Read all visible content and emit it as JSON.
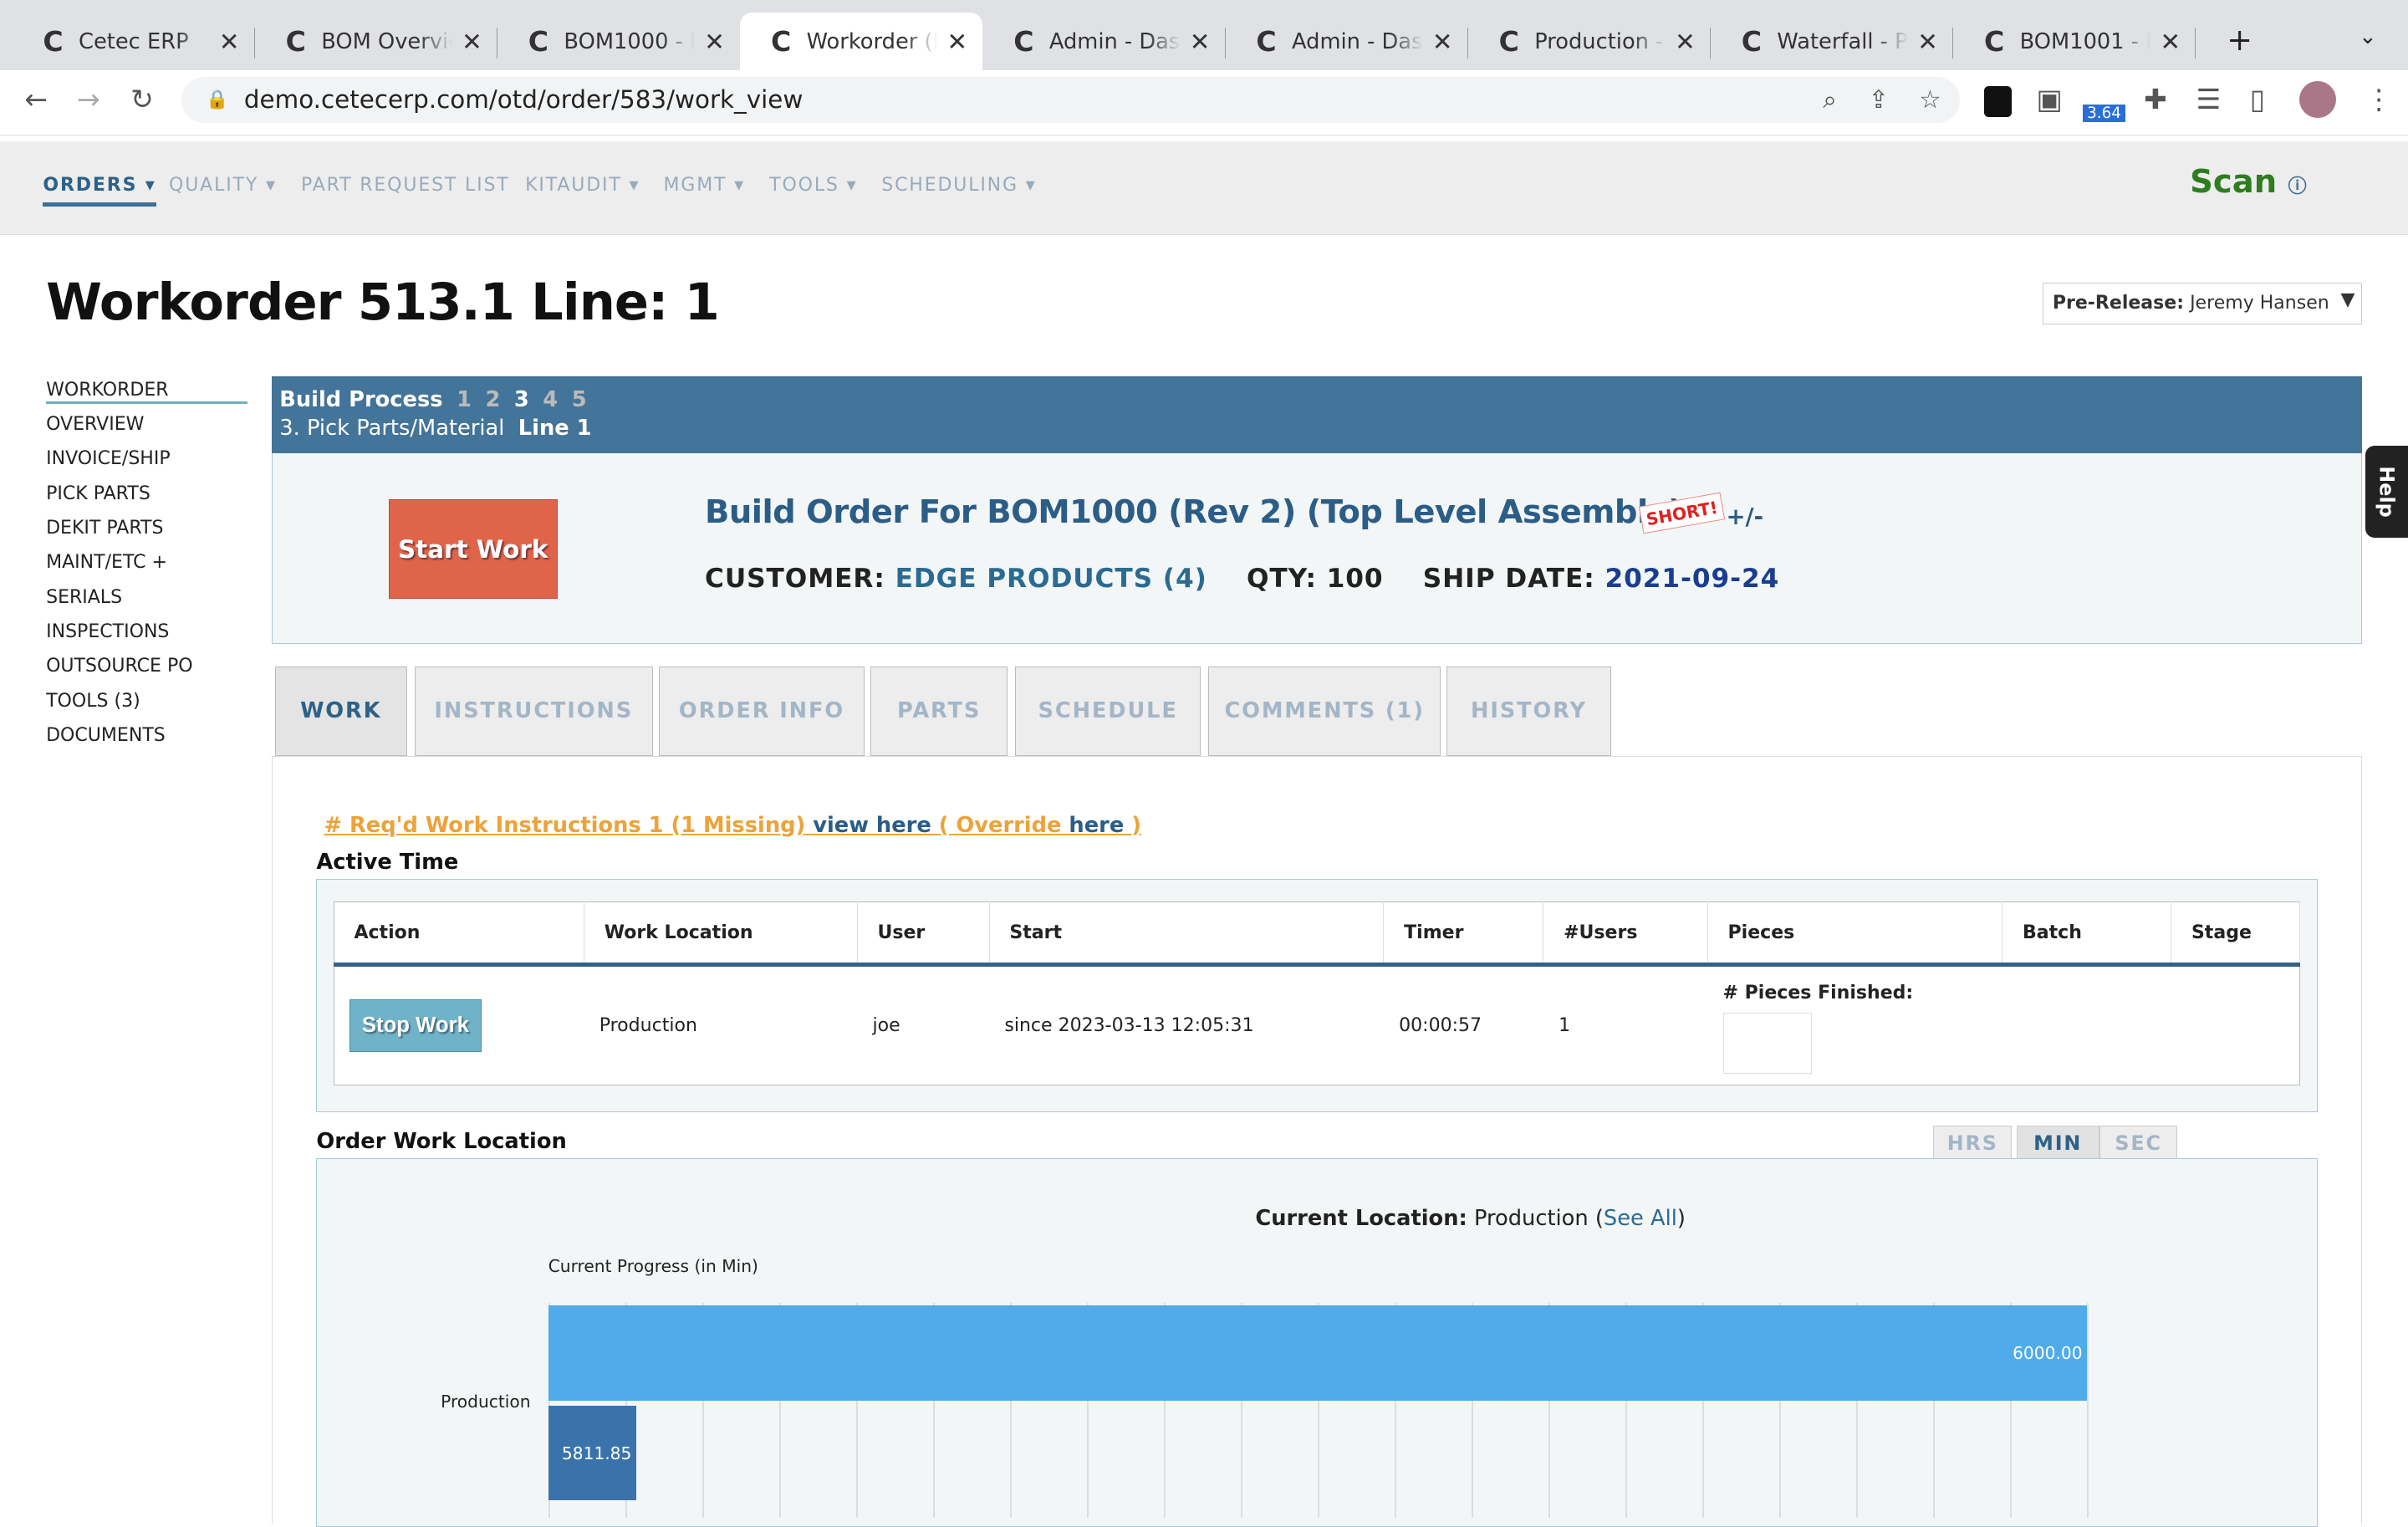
{
  "browser": {
    "tabs": [
      "Cetec ERP",
      "BOM Overview",
      "BOM1000 - Parts",
      "Workorder (Build)",
      "Admin - Dashboard",
      "Admin - Dashboard",
      "Production - Schedule",
      "Waterfall - PR",
      "BOM1001 - Parts"
    ],
    "active_tab": 3,
    "url": "demo.cetecerp.com/otd/order/583/work_view",
    "extension_badge": "3.64"
  },
  "nav": {
    "items": [
      "ORDERS ▾",
      "QUALITY ▾",
      "PART REQUEST LIST",
      "KITAUDIT ▾",
      "MGMT ▾",
      "TOOLS ▾",
      "SCHEDULING ▾"
    ],
    "scan": "Scan"
  },
  "page": {
    "title": "Workorder 513.1 Line: 1",
    "prerelease_label": "Pre-Release:",
    "prerelease_value": "Jeremy Hansen"
  },
  "sidebar": [
    "WORKORDER",
    "OVERVIEW",
    "INVOICE/SHIP",
    "PICK PARTS",
    "DEKIT PARTS",
    "MAINT/ETC +",
    "SERIALS",
    "INSPECTIONS",
    "OUTSOURCE PO",
    "TOOLS (3)",
    "DOCUMENTS"
  ],
  "build": {
    "label": "Build Process",
    "steps": [
      "1",
      "2",
      "3",
      "4",
      "5"
    ],
    "current_step": "3. Pick Parts/Material",
    "line": "Line 1"
  },
  "order": {
    "start_work": "Start Work",
    "title": "Build Order For BOM1000 (Rev 2) (Top Level Assembly)",
    "short": "SHORT!",
    "plusminus": "+/-",
    "customer_label": "CUSTOMER:",
    "customer": "EDGE PRODUCTS (4)",
    "qty": "QTY: 100",
    "ship_label": "SHIP DATE:",
    "ship_date": "2021-09-24"
  },
  "tabs": [
    "WORK",
    "INSTRUCTIONS",
    "ORDER INFO",
    "PARTS",
    "SCHEDULE",
    "COMMENTS (1)",
    "HISTORY"
  ],
  "reqd": {
    "text": "# Req'd Work Instructions 1 (1 Missing)",
    "view": "view here",
    "override": "( Override",
    "here": "here",
    "close": ")"
  },
  "active_time": {
    "title": "Active Time",
    "columns": [
      "Action",
      "Work Location",
      "User",
      "Start",
      "Timer",
      "#Users",
      "Pieces",
      "Batch",
      "Stage"
    ],
    "row": {
      "action": "Stop Work",
      "location": "Production",
      "user": "joe",
      "start": "since 2023-03-13 12:05:31",
      "timer": "00:00:57",
      "users": "1",
      "pieces_label": "# Pieces Finished:",
      "batch": "",
      "stage": ""
    }
  },
  "owl": {
    "title": "Order Work Location",
    "units": [
      "HRS",
      "MIN",
      "SEC"
    ],
    "active_unit": "MIN",
    "current_label": "Current Location:",
    "current": "Production",
    "see_all": "See All"
  },
  "chart_data": {
    "type": "bar",
    "orientation": "horizontal",
    "title": "Current Progress (in Min)",
    "categories": [
      "Production"
    ],
    "series": [
      {
        "values": [
          6000.0
        ],
        "color": "#4fabe9"
      },
      {
        "values": [
          5811.85
        ],
        "color": "#3a73ac"
      }
    ],
    "data_labels": [
      "6000.00",
      "5811.85"
    ],
    "grid": true
  }
}
